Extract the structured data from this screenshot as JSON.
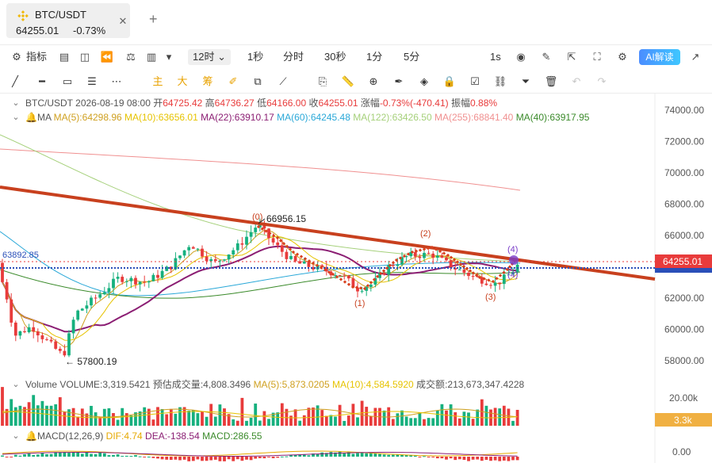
{
  "tab": {
    "symbol": "BTC/USDT",
    "price": "64255.01",
    "change": "-0.73%",
    "close_icon": "close-icon",
    "add_icon": "plus-icon"
  },
  "toolbar": {
    "indicators_label": "指标",
    "intervals": [
      "12时",
      "1秒",
      "分时",
      "30秒",
      "1分",
      "5分"
    ],
    "active_interval": "12时",
    "right_interval": "1s",
    "ai_label": "AI解读"
  },
  "drawing_tools": {
    "main_label": "主",
    "large_label": "大",
    "chip_label": "筹"
  },
  "ohlc": {
    "symbol": "BTC/USDT",
    "datetime": "2026-08-19 08:00",
    "open_label": "开",
    "open": "64725.42",
    "high_label": "高",
    "high": "64736.27",
    "low_label": "低",
    "low": "64166.00",
    "close_label": "收",
    "close": "64255.01",
    "change_label": "涨幅",
    "change": "-0.73%(-470.41)",
    "amplitude_label": "振幅",
    "amplitude": "0.88%"
  },
  "ma": {
    "label": "MA",
    "items": [
      {
        "text": "MA(5):64298.96",
        "color": "#cfa020"
      },
      {
        "text": "MA(10):63656.01",
        "color": "#e6c300"
      },
      {
        "text": "MA(22):63910.17",
        "color": "#8b1e73"
      },
      {
        "text": "MA(60):64245.48",
        "color": "#2aa8d8"
      },
      {
        "text": "MA(122):63426.50",
        "color": "#a5d07a"
      },
      {
        "text": "MA(255):68841.40",
        "color": "#f09090"
      },
      {
        "text": "MA(40):63917.95",
        "color": "#3a8a2a"
      }
    ]
  },
  "price_axis": {
    "ticks": [
      "74000.00",
      "72000.00",
      "70000.00",
      "68000.00",
      "66000.00",
      "62000.00",
      "60000.00",
      "58000.00"
    ],
    "current_price_tag": "64255.01",
    "dotted_price_tag": "63892.85",
    "left_price_label": "63892.85"
  },
  "annotations": {
    "high_label": "66956.15",
    "low_label": "← 57800.19",
    "wave_labels": [
      "(0)",
      "(1)",
      "(2)",
      "(3)",
      "(4)"
    ]
  },
  "volume": {
    "label": "Volume",
    "volume": "VOLUME:3,319.5421",
    "estimate_label": "预估成交量",
    "estimate": "4,808.3496",
    "ma5": "MA(5):5,873.0205",
    "ma10": "MA(10):4,584.5920",
    "amount_label": "成交额",
    "amount": "213,673,347.4228",
    "axis_tick": "20.00k",
    "current_tag": "3.3k"
  },
  "macd": {
    "label": "MACD(12,26,9)",
    "dif": "DIF:4.74",
    "dea": "DEA:-138.54",
    "macd": "MACD:286.55",
    "axis_tick": "0.00"
  },
  "colors": {
    "up": "#16b07e",
    "down": "#e83b3b",
    "trendline": "#c8401e",
    "current_price": "#e83b3b",
    "dotted_level": "#2a4fb8",
    "accent": "#e8a200"
  },
  "chart_data": [
    {
      "type": "candlestick",
      "title": "BTC/USDT 12时",
      "ylim": [
        57000,
        75000
      ],
      "price_ticks": [
        74000,
        72000,
        70000,
        68000,
        66000,
        62000,
        60000,
        58000
      ],
      "series": [
        {
          "name": "MA(255)",
          "values": [
            71000,
            68800
          ]
        },
        {
          "name": "Trendline",
          "values": [
            69500,
            63300
          ]
        }
      ],
      "high": 66956.15,
      "low": 57800.19,
      "last_close": 64255.01,
      "level": 63892.85,
      "grid": false
    },
    {
      "type": "bar",
      "title": "Volume",
      "ylim": [
        0,
        25000
      ],
      "ticks": [
        20000
      ],
      "last_value": 3319.5421
    },
    {
      "type": "bar",
      "title": "MACD(12,26,9)",
      "ticks": [
        0
      ],
      "dif": 4.74,
      "dea": -138.54,
      "macd": 286.55
    }
  ]
}
